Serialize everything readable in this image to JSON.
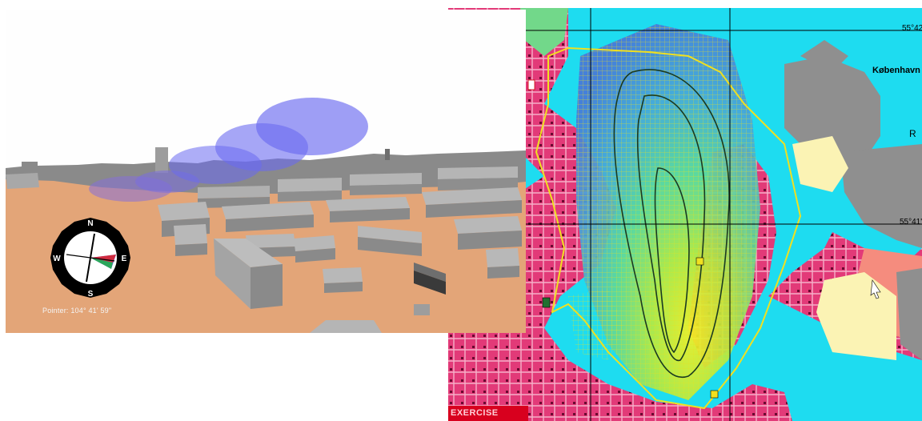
{
  "map_view": {
    "place_label": "København",
    "lat_labels": [
      "55°42'",
      "55°41'"
    ],
    "edge_label": "R",
    "badge_text": "EXERCISE",
    "colors": {
      "sea": "#1edcf0",
      "built_area": "#e23a78",
      "land_grey": "#8f8f8f",
      "land_cream": "#fbf3b4",
      "land_salmon": "#f58c7e",
      "park_green": "#72d88a",
      "plume_high": "#f0f020",
      "plume_mid": "#7ee08a",
      "plume_low": "#5aa0e0",
      "risk_zone_outline": "#f0e020"
    }
  },
  "view_3d": {
    "pointer_label": "Pointer:",
    "pointer_value": "104° 41' 59\"",
    "compass": {
      "north": "N",
      "east": "E",
      "south": "S",
      "west": "W"
    },
    "colors": {
      "ground": "#e3a578",
      "buildings": "#9d9d9d",
      "plume": "#6a6af0"
    }
  }
}
